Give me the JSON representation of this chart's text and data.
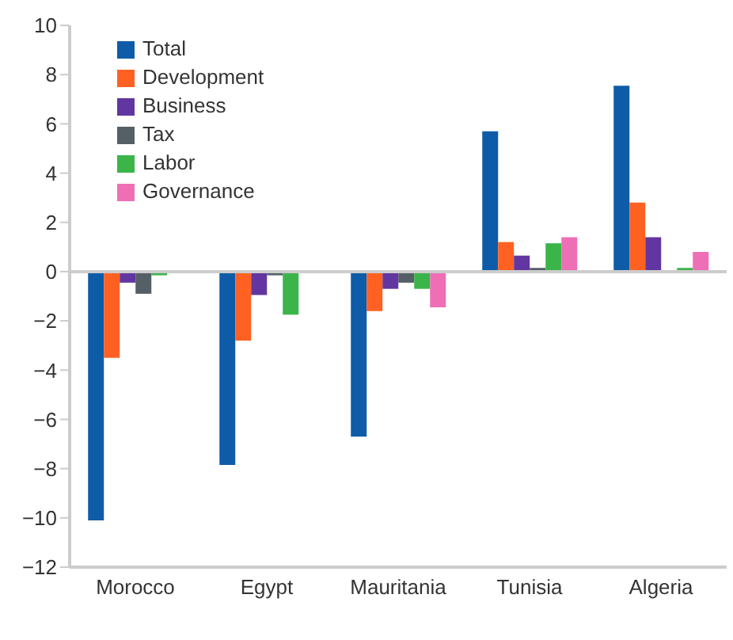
{
  "chart_data": {
    "type": "bar",
    "categories": [
      "Morocco",
      "Egypt",
      "Mauritania",
      "Tunisia",
      "Algeria"
    ],
    "series": [
      {
        "name": "Total",
        "color": "#0e5ca8",
        "values": [
          -10.1,
          -7.85,
          -6.7,
          5.7,
          7.55
        ]
      },
      {
        "name": "Development",
        "color": "#fe6122",
        "values": [
          -3.5,
          -2.8,
          -1.6,
          1.2,
          2.8
        ]
      },
      {
        "name": "Business",
        "color": "#6236a0",
        "values": [
          -0.45,
          -0.95,
          -0.7,
          0.65,
          1.4
        ]
      },
      {
        "name": "Tax",
        "color": "#555f66",
        "values": [
          -0.9,
          -0.15,
          -0.45,
          0.15,
          null
        ]
      },
      {
        "name": "Labor",
        "color": "#3bb54a",
        "values": [
          -0.15,
          -1.75,
          -0.7,
          1.15,
          0.15
        ]
      },
      {
        "name": "Governance",
        "color": "#ee6fb5",
        "values": [
          null,
          null,
          -1.45,
          1.4,
          0.8
        ]
      }
    ],
    "ylim": [
      -12,
      10
    ],
    "yticks": [
      -12,
      -10,
      -8,
      -6,
      -4,
      -2,
      0,
      2,
      4,
      6,
      8,
      10
    ],
    "ref_lines": [
      {
        "axis": "y",
        "value": 0,
        "color": "#cccccc"
      }
    ],
    "legend": "top left"
  }
}
